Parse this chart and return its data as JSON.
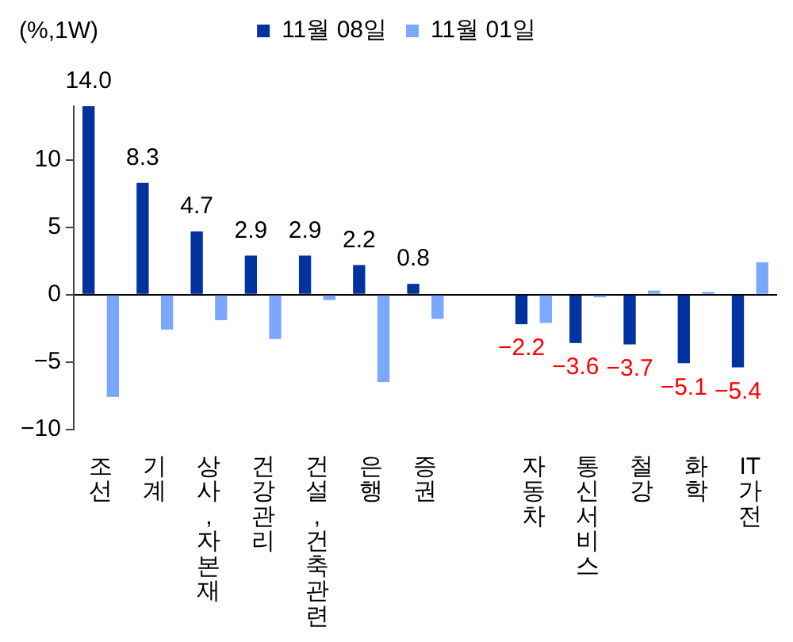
{
  "chart_data": {
    "type": "bar",
    "ylabel": "(%,1W)",
    "categories": [
      "조선",
      "기계",
      "상사,자본재",
      "건강관리",
      "건설,건축관련",
      "은행",
      "증권",
      null,
      "자동차",
      "통신서비스",
      "철강",
      "화학",
      "IT가전"
    ],
    "series": [
      {
        "name": "11월 08일",
        "color": "#0033a0",
        "values": [
          14.0,
          8.3,
          4.7,
          2.9,
          2.9,
          2.2,
          0.8,
          null,
          -2.2,
          -3.6,
          -3.7,
          -5.1,
          -5.4
        ],
        "value_labels": [
          "14.0",
          "8.3",
          "4.7",
          "2.9",
          "2.9",
          "2.2",
          "0.8",
          null,
          "−2.2",
          "−3.6",
          "−3.7",
          "−5.1",
          "−5.4"
        ]
      },
      {
        "name": "11월 01일",
        "color": "#7aa7ff",
        "values": [
          -7.6,
          -2.6,
          -1.9,
          -3.3,
          -0.4,
          -6.5,
          -1.8,
          null,
          -2.1,
          -0.2,
          0.3,
          0.2,
          2.4
        ]
      }
    ],
    "ylim": [
      -10,
      14
    ],
    "yticks": [
      {
        "value": -10,
        "label": "−10"
      },
      {
        "value": -5,
        "label": "−5"
      },
      0,
      5,
      10
    ],
    "legend": "top"
  }
}
